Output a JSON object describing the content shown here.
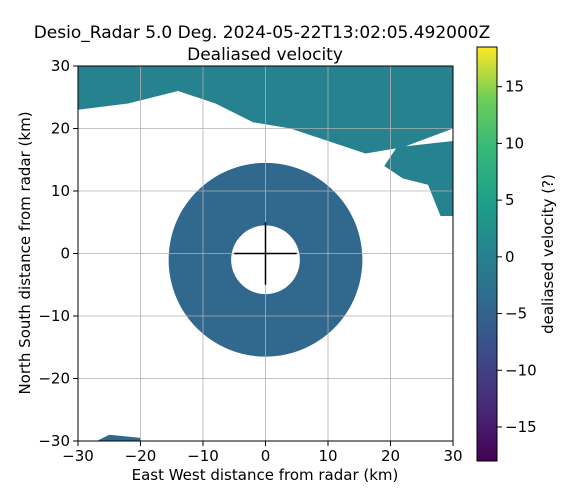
{
  "chart_data": {
    "type": "heatmap",
    "title_line1": "Desio_Radar 5.0 Deg. 2024-05-22T13:02:05.492000Z",
    "title_line2": "Dealiased velocity",
    "xlabel": "East West distance from radar (km)",
    "ylabel": "North South distance from radar (km)",
    "xlim": [
      -30,
      30
    ],
    "ylim": [
      -30,
      30
    ],
    "xticks": [
      -30,
      -20,
      -10,
      0,
      10,
      20,
      30
    ],
    "yticks": [
      -30,
      -20,
      -10,
      0,
      10,
      20,
      30
    ],
    "xtick_labels": [
      "−30",
      "−20",
      "−10",
      "0",
      "10",
      "20",
      "30"
    ],
    "ytick_labels": [
      "−30",
      "−20",
      "−10",
      "0",
      "10",
      "20",
      "30"
    ],
    "grid": true,
    "colorbar": {
      "label": "dealiased velocity (?)",
      "range": [
        -18,
        18.5
      ],
      "ticks": [
        -15,
        -10,
        -5,
        0,
        5,
        10,
        15
      ],
      "tick_labels": [
        "−15",
        "−10",
        "−5",
        "0",
        "5",
        "10",
        "15"
      ],
      "colormap": "viridis"
    },
    "regions": [
      {
        "name": "central-echo",
        "cx": 0,
        "cy": -1,
        "r_outer": 15.5,
        "r_inner": 5.5,
        "value": -2.5
      },
      {
        "name": "northern-band",
        "polygon": [
          [
            -30,
            30
          ],
          [
            30,
            30
          ],
          [
            30,
            20
          ],
          [
            22,
            17
          ],
          [
            16,
            16
          ],
          [
            10,
            18
          ],
          [
            4,
            20
          ],
          [
            -2,
            21
          ],
          [
            -8,
            24
          ],
          [
            -14,
            26
          ],
          [
            -22,
            24
          ],
          [
            -30,
            23
          ]
        ],
        "value": -1.5
      },
      {
        "name": "east-cell",
        "polygon": [
          [
            21,
            17
          ],
          [
            30,
            18
          ],
          [
            30,
            6
          ],
          [
            28,
            6
          ],
          [
            26,
            11
          ],
          [
            22,
            12
          ],
          [
            19,
            14
          ]
        ],
        "value": -1
      },
      {
        "name": "southwest-fragment",
        "polygon": [
          [
            -25,
            -29
          ],
          [
            -20,
            -29.5
          ],
          [
            -20,
            -30
          ],
          [
            -27,
            -30
          ]
        ],
        "value": -3
      }
    ]
  }
}
